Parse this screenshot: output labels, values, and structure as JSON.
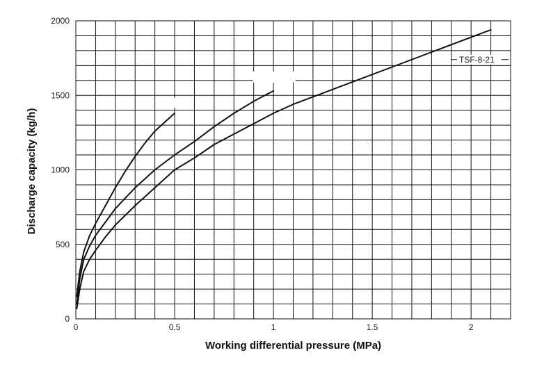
{
  "chart_data": {
    "type": "line",
    "title": "",
    "xlabel": "Working differential pressure (MPa)",
    "ylabel": "Discharge capacity (kg/h)",
    "xlim": [
      0,
      2.2
    ],
    "ylim": [
      0,
      2000
    ],
    "grid": true,
    "x_ticks": [
      0,
      0.5,
      1,
      1.5,
      2
    ],
    "x_tick_labels": [
      "0",
      "0.5",
      "1",
      "1.5",
      "2"
    ],
    "y_ticks": [
      0,
      500,
      1000,
      1500,
      2000
    ],
    "y_tick_labels": [
      "0",
      "500",
      "1000",
      "1500",
      "2000"
    ],
    "series": [
      {
        "name": "",
        "x": [
          0.005,
          0.02,
          0.04,
          0.07,
          0.1,
          0.15,
          0.2,
          0.25,
          0.3,
          0.35,
          0.4,
          0.45,
          0.5
        ],
        "y": [
          150,
          320,
          450,
          560,
          640,
          760,
          880,
          990,
          1090,
          1180,
          1260,
          1320,
          1380
        ]
      },
      {
        "name": "",
        "x": [
          0.005,
          0.02,
          0.04,
          0.07,
          0.1,
          0.15,
          0.2,
          0.3,
          0.4,
          0.5,
          0.6,
          0.7,
          0.8,
          0.9,
          1.0
        ],
        "y": [
          100,
          270,
          400,
          490,
          560,
          650,
          740,
          880,
          1000,
          1100,
          1190,
          1290,
          1380,
          1460,
          1530
        ]
      },
      {
        "name": "TSF-8-21",
        "x": [
          0.005,
          0.02,
          0.04,
          0.07,
          0.1,
          0.15,
          0.2,
          0.3,
          0.4,
          0.5,
          0.6,
          0.7,
          0.8,
          0.9,
          1.0,
          1.1,
          1.2,
          1.4,
          1.6,
          1.8,
          2.0,
          2.1
        ],
        "y": [
          70,
          200,
          320,
          400,
          460,
          550,
          630,
          760,
          880,
          1000,
          1080,
          1170,
          1240,
          1310,
          1380,
          1440,
          1490,
          1590,
          1690,
          1790,
          1890,
          1940
        ]
      }
    ]
  }
}
